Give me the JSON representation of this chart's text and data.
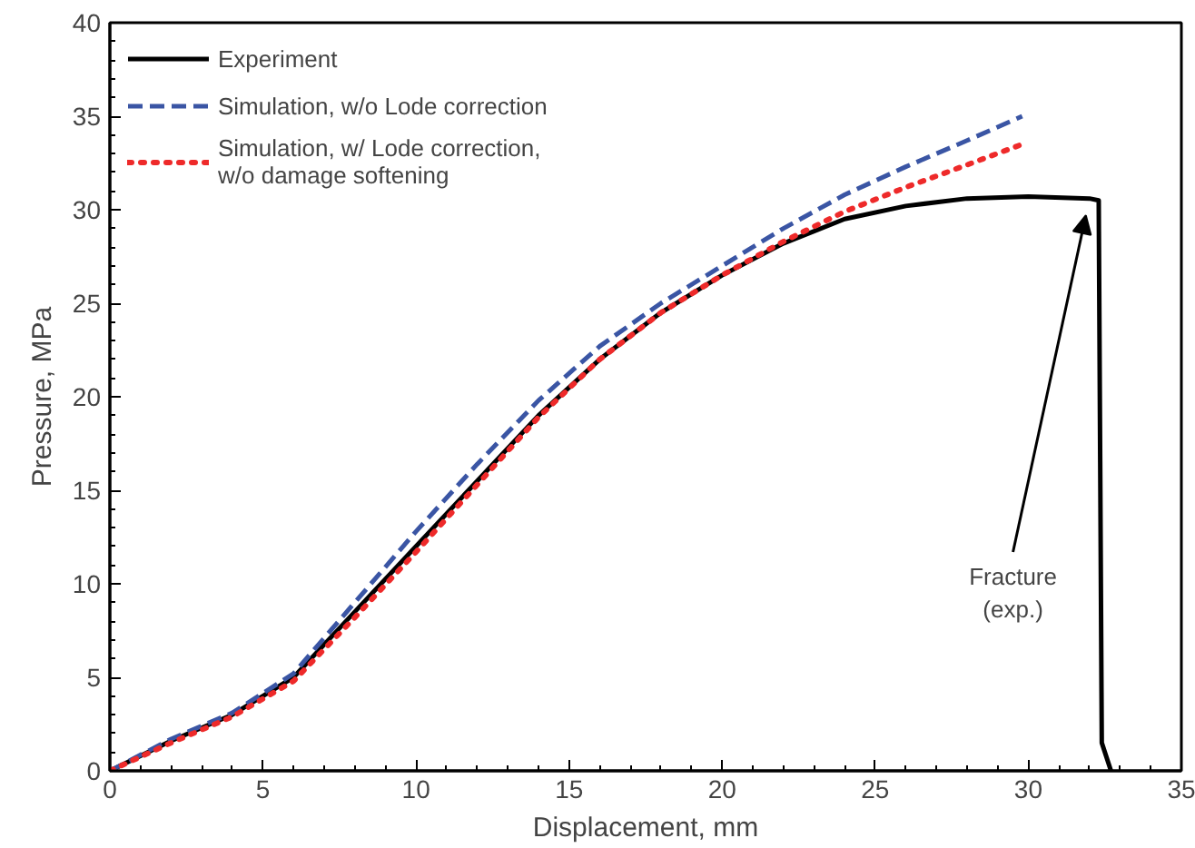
{
  "chart_data": {
    "type": "line",
    "xlabel": "Displacement, mm",
    "ylabel": "Pressure, MPa",
    "xlim": [
      0,
      35
    ],
    "ylim": [
      0,
      40
    ],
    "xticks": [
      0,
      5,
      10,
      15,
      20,
      25,
      30,
      35
    ],
    "yticks": [
      0,
      5,
      10,
      15,
      20,
      25,
      30,
      35,
      40
    ],
    "grid": false,
    "legend": "top left",
    "marker": "none",
    "annotations": [
      "Fracture\n(exp.)"
    ],
    "series": [
      {
        "name": "Experiment",
        "color": "#000000",
        "line_style": "solid",
        "x": [
          0,
          2,
          4,
          6,
          8,
          10,
          12,
          14,
          16,
          18,
          20,
          22,
          24,
          26,
          28,
          30,
          32,
          32.3,
          32.4,
          32.7
        ],
        "values": [
          0,
          1.6,
          3.0,
          5,
          8.5,
          12,
          15.5,
          19,
          22,
          24.5,
          26.5,
          28.2,
          29.5,
          30.2,
          30.6,
          30.7,
          30.6,
          30.5,
          1.5,
          0
        ]
      },
      {
        "name": "Simulation, w/o Lode correction",
        "color": "#3a55a4",
        "line_style": "dashed",
        "x": [
          0,
          2,
          4,
          6,
          8,
          10,
          12,
          14,
          16,
          18,
          20,
          22,
          24,
          26,
          28,
          29.8
        ],
        "values": [
          0,
          1.7,
          3.1,
          5.2,
          9,
          12.8,
          16.4,
          19.8,
          22.7,
          25,
          27,
          29,
          30.8,
          32.3,
          33.7,
          35
        ]
      },
      {
        "name": "Simulation, w/ Lode correction,\nw/o damage softening",
        "color": "#ee2a2a",
        "line_style": "dotted",
        "x": [
          0,
          2,
          4,
          6,
          8,
          10,
          12,
          14,
          16,
          18,
          20,
          22,
          24,
          26,
          28,
          29.8
        ],
        "values": [
          0,
          1.5,
          2.9,
          4.8,
          8.2,
          11.7,
          15.3,
          18.9,
          22,
          24.5,
          26.5,
          28.3,
          29.9,
          31.2,
          32.4,
          33.5
        ]
      }
    ]
  }
}
